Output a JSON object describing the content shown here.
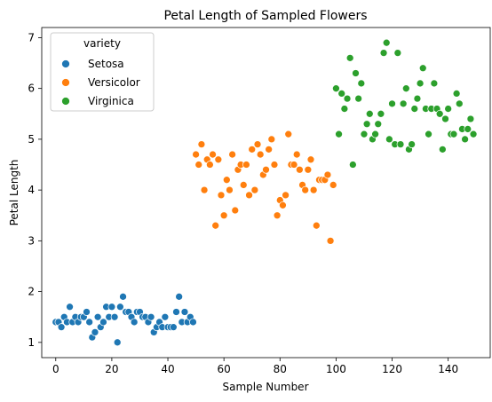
{
  "chart_data": {
    "type": "scatter",
    "title": "Petal Length of Sampled Flowers",
    "xlabel": "Sample Number",
    "ylabel": "Petal Length",
    "xlim": [
      -5,
      155
    ],
    "ylim": [
      0.7,
      7.2
    ],
    "xticks": [
      0,
      20,
      40,
      60,
      80,
      100,
      120,
      140
    ],
    "yticks": [
      1,
      2,
      3,
      4,
      5,
      6,
      7
    ],
    "grid": false,
    "legend": {
      "title": "variety",
      "placement": "upper-left"
    },
    "series": [
      {
        "name": "Setosa",
        "color": "#1f77b4",
        "x": [
          0,
          1,
          2,
          3,
          4,
          5,
          6,
          7,
          8,
          9,
          10,
          11,
          12,
          13,
          14,
          15,
          16,
          17,
          18,
          19,
          20,
          21,
          22,
          23,
          24,
          25,
          26,
          27,
          28,
          29,
          30,
          31,
          32,
          33,
          34,
          35,
          36,
          37,
          38,
          39,
          40,
          41,
          42,
          43,
          44,
          45,
          46,
          47,
          48,
          49
        ],
        "y": [
          1.4,
          1.4,
          1.3,
          1.5,
          1.4,
          1.7,
          1.4,
          1.5,
          1.4,
          1.5,
          1.5,
          1.6,
          1.4,
          1.1,
          1.2,
          1.5,
          1.3,
          1.4,
          1.7,
          1.5,
          1.7,
          1.5,
          1.0,
          1.7,
          1.9,
          1.6,
          1.6,
          1.5,
          1.4,
          1.6,
          1.6,
          1.5,
          1.5,
          1.4,
          1.5,
          1.2,
          1.3,
          1.4,
          1.3,
          1.5,
          1.3,
          1.3,
          1.3,
          1.6,
          1.9,
          1.4,
          1.6,
          1.4,
          1.5,
          1.4
        ]
      },
      {
        "name": "Versicolor",
        "color": "#ff7f0e",
        "x": [
          50,
          51,
          52,
          53,
          54,
          55,
          56,
          57,
          58,
          59,
          60,
          61,
          62,
          63,
          64,
          65,
          66,
          67,
          68,
          69,
          70,
          71,
          72,
          73,
          74,
          75,
          76,
          77,
          78,
          79,
          80,
          81,
          82,
          83,
          84,
          85,
          86,
          87,
          88,
          89,
          90,
          91,
          92,
          93,
          94,
          95,
          96,
          97,
          98,
          99
        ],
        "y": [
          4.7,
          4.5,
          4.9,
          4.0,
          4.6,
          4.5,
          4.7,
          3.3,
          4.6,
          3.9,
          3.5,
          4.2,
          4.0,
          4.7,
          3.6,
          4.4,
          4.5,
          4.1,
          4.5,
          3.9,
          4.8,
          4.0,
          4.9,
          4.7,
          4.3,
          4.4,
          4.8,
          5.0,
          4.5,
          3.5,
          3.8,
          3.7,
          3.9,
          5.1,
          4.5,
          4.5,
          4.7,
          4.4,
          4.1,
          4.0,
          4.4,
          4.6,
          4.0,
          3.3,
          4.2,
          4.2,
          4.2,
          4.3,
          3.0,
          4.1
        ]
      },
      {
        "name": "Virginica",
        "color": "#2ca02c",
        "x": [
          100,
          101,
          102,
          103,
          104,
          105,
          106,
          107,
          108,
          109,
          110,
          111,
          112,
          113,
          114,
          115,
          116,
          117,
          118,
          119,
          120,
          121,
          122,
          123,
          124,
          125,
          126,
          127,
          128,
          129,
          130,
          131,
          132,
          133,
          134,
          135,
          136,
          137,
          138,
          139,
          140,
          141,
          142,
          143,
          144,
          145,
          146,
          147,
          148,
          149
        ],
        "y": [
          6.0,
          5.1,
          5.9,
          5.6,
          5.8,
          6.6,
          4.5,
          6.3,
          5.8,
          6.1,
          5.1,
          5.3,
          5.5,
          5.0,
          5.1,
          5.3,
          5.5,
          6.7,
          6.9,
          5.0,
          5.7,
          4.9,
          6.7,
          4.9,
          5.7,
          6.0,
          4.8,
          4.9,
          5.6,
          5.8,
          6.1,
          6.4,
          5.6,
          5.1,
          5.6,
          6.1,
          5.6,
          5.5,
          4.8,
          5.4,
          5.6,
          5.1,
          5.1,
          5.9,
          5.7,
          5.2,
          5.0,
          5.2,
          5.4,
          5.1
        ]
      }
    ]
  }
}
